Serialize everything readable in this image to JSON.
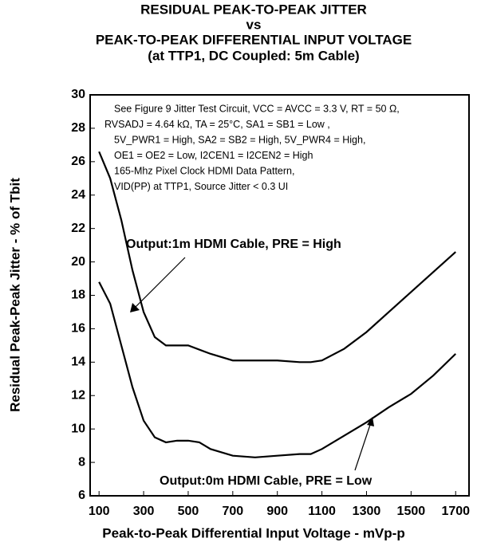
{
  "chart_data": {
    "type": "line",
    "title": [
      "RESIDUAL PEAK-TO-PEAK JITTER",
      "vs",
      "PEAK-TO-PEAK DIFFERENTIAL INPUT VOLTAGE",
      "(at TTP1, DC Coupled: 5m Cable)"
    ],
    "x_label": "Peak-to-Peak Differential Input Voltage - mVp-p",
    "y_label": "Residual Peak-Peak Jitter - % of Tbit",
    "notes": [
      "See Figure 9 Jitter Test Circuit, VCC = AVCC = 3.3 V, RT = 50 Ω,",
      "RVSADJ = 4.64 kΩ, TA = 25°C, SA1 = SB1 = Low ,",
      "5V_PWR1 = High, SA2 = SB2 = High, 5V_PWR4 = High,",
      "OE1 = OE2 = Low, I2CEN1 = I2CEN2 = High",
      "165-Mhz Pixel Clock HDMI Data Pattern,",
      "VID(PP) at TTP1, Source Jitter < 0.3 UI"
    ],
    "xlim": [
      60,
      1760
    ],
    "ylim": [
      6,
      30
    ],
    "xticks": [
      100,
      300,
      500,
      700,
      900,
      1100,
      1300,
      1500,
      1700
    ],
    "yticks": [
      6,
      8,
      10,
      12,
      14,
      16,
      18,
      20,
      22,
      24,
      26,
      28,
      30
    ],
    "grid": false,
    "series": [
      {
        "name": "Output:1m HDMI Cable, PRE = High",
        "color": "#000000",
        "x": [
          100,
          150,
          200,
          250,
          300,
          350,
          400,
          500,
          600,
          700,
          800,
          900,
          1000,
          1050,
          1100,
          1200,
          1300,
          1400,
          1500,
          1600,
          1700
        ],
        "values": [
          26.6,
          25,
          22.5,
          19.5,
          17,
          15.5,
          15,
          15,
          14.5,
          14.1,
          14.1,
          14.1,
          14,
          14,
          14.1,
          14.8,
          15.8,
          17,
          18.2,
          19.4,
          20.6
        ]
      },
      {
        "name": "Output:0m HDMI Cable, PRE = Low",
        "color": "#000000",
        "x": [
          100,
          150,
          200,
          250,
          300,
          350,
          400,
          450,
          500,
          550,
          600,
          700,
          800,
          900,
          1000,
          1050,
          1100,
          1200,
          1300,
          1400,
          1500,
          1600,
          1700
        ],
        "values": [
          18.8,
          17.5,
          15,
          12.5,
          10.5,
          9.5,
          9.2,
          9.3,
          9.3,
          9.2,
          8.8,
          8.4,
          8.3,
          8.4,
          8.5,
          8.5,
          8.8,
          9.6,
          10.4,
          11.3,
          12.1,
          13.2,
          14.5
        ]
      }
    ]
  }
}
